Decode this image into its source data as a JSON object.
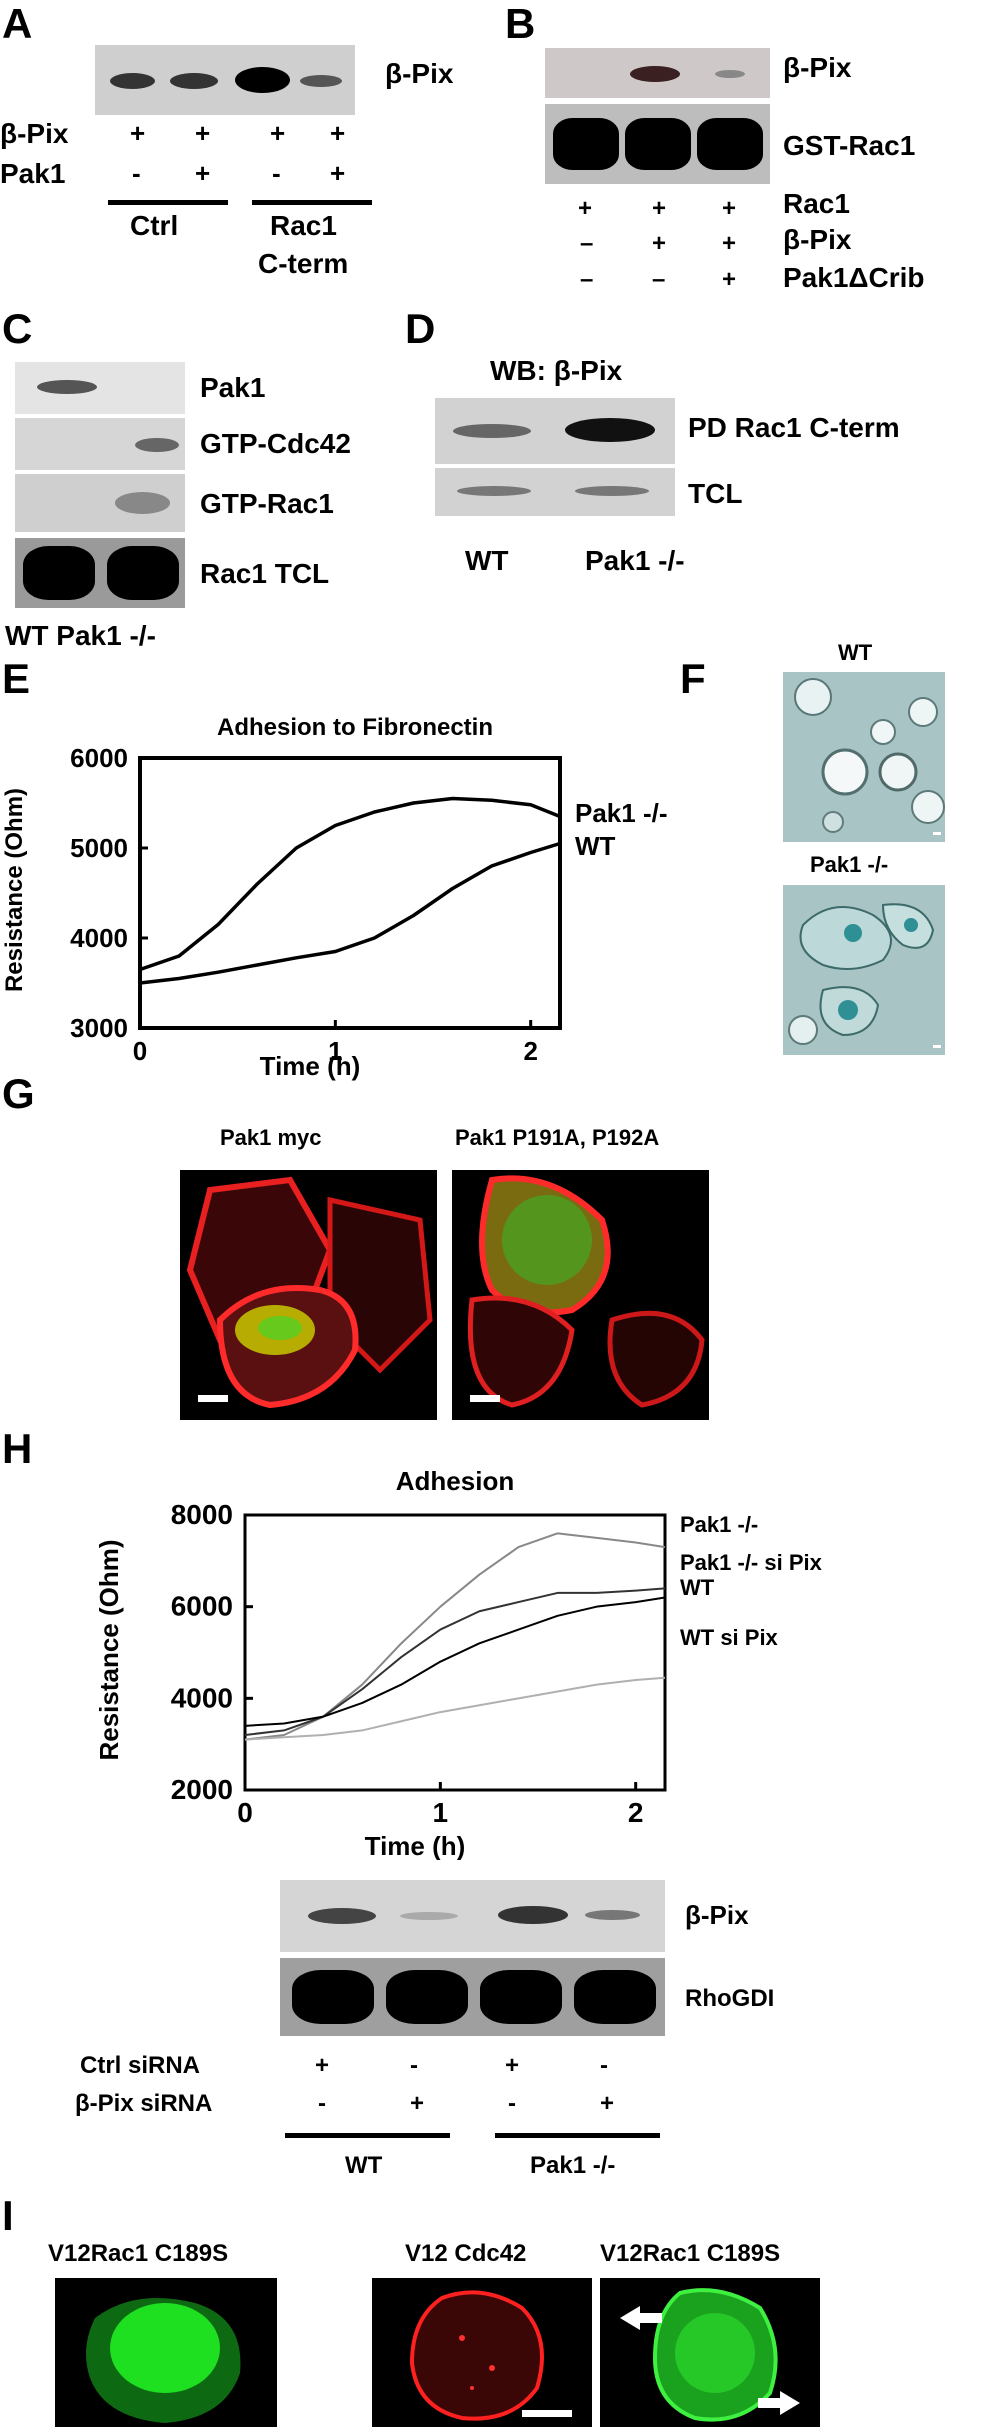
{
  "panels": [
    "A",
    "B",
    "C",
    "D",
    "E",
    "F",
    "G",
    "H",
    "I"
  ],
  "A": {
    "blot_label": "β-Pix",
    "rows": [
      {
        "label": "β-Pix",
        "marks": [
          "+",
          "+",
          "+",
          "+"
        ]
      },
      {
        "label": "Pak1",
        "marks": [
          "-",
          "+",
          "-",
          "+"
        ]
      }
    ],
    "groups": [
      "Ctrl",
      "Rac1",
      "C-term"
    ]
  },
  "B": {
    "blot_labels": [
      "β-Pix",
      "GST-Rac1"
    ],
    "rows": [
      {
        "label": "Rac1",
        "marks": [
          "+",
          "+",
          "+"
        ]
      },
      {
        "label": "β-Pix",
        "marks": [
          "–",
          "+",
          "+"
        ]
      },
      {
        "label": "Pak1ΔCrib",
        "marks": [
          "–",
          "–",
          "+"
        ]
      }
    ]
  },
  "C": {
    "blot_labels": [
      "Pak1",
      "GTP-Cdc42",
      "GTP-Rac1",
      "Rac1 TCL"
    ],
    "lanes": "WT Pak1 -/-"
  },
  "D": {
    "header": "WB: β-Pix",
    "blot_labels": [
      "PD Rac1 C-term",
      "TCL"
    ],
    "lanes": [
      "WT",
      "Pak1 -/-"
    ]
  },
  "E": {
    "title": "Adhesion to Fibronectin",
    "ylabel": "Resistance (Ohm)",
    "xlabel": "Time (h)",
    "yticks": [
      "6000",
      "5000",
      "4000",
      "3000"
    ],
    "xticks": [
      "0",
      "1",
      "2"
    ],
    "series_labels": [
      "Pak1 -/-",
      "WT"
    ]
  },
  "F": {
    "labels": [
      "WT",
      "Pak1 -/-"
    ]
  },
  "G": {
    "labels": [
      "Pak1 myc",
      "Pak1 P191A, P192A"
    ]
  },
  "H": {
    "title": "Adhesion",
    "ylabel": "Resistance (Ohm)",
    "xlabel": "Time (h)",
    "yticks": [
      "8000",
      "6000",
      "4000",
      "2000"
    ],
    "xticks": [
      "0",
      "1",
      "2"
    ],
    "series_labels": [
      "Pak1 -/-",
      "Pak1 -/- si Pix",
      "WT",
      "WT si Pix"
    ],
    "blot_labels": [
      "β-Pix",
      "RhoGDI"
    ],
    "rows": [
      {
        "label": "Ctrl siRNA",
        "marks": [
          "+",
          "-",
          "+",
          "-"
        ]
      },
      {
        "label": "β-Pix siRNA",
        "marks": [
          "-",
          "+",
          "-",
          "+"
        ]
      }
    ],
    "groups": [
      "WT",
      "Pak1 -/-"
    ]
  },
  "I": {
    "labels": [
      "V12Rac1 C189S",
      "V12 Cdc42",
      "V12Rac1 C189S"
    ]
  },
  "chart_data": [
    {
      "type": "line",
      "title": "Adhesion to Fibronectin",
      "xlabel": "Time (h)",
      "ylabel": "Resistance (Ohm)",
      "xlim": [
        0,
        2.15
      ],
      "ylim": [
        3000,
        6000
      ],
      "series": [
        {
          "name": "Pak1 -/-",
          "x": [
            0,
            0.2,
            0.4,
            0.6,
            0.8,
            1.0,
            1.2,
            1.4,
            1.6,
            1.8,
            2.0,
            2.15
          ],
          "y": [
            3650,
            3800,
            4150,
            4600,
            5000,
            5250,
            5400,
            5500,
            5550,
            5530,
            5480,
            5350
          ]
        },
        {
          "name": "WT",
          "x": [
            0,
            0.2,
            0.4,
            0.6,
            0.8,
            1.0,
            1.2,
            1.4,
            1.6,
            1.8,
            2.0,
            2.15
          ],
          "y": [
            3500,
            3550,
            3620,
            3700,
            3780,
            3850,
            4000,
            4250,
            4550,
            4800,
            4950,
            5050
          ]
        }
      ]
    },
    {
      "type": "line",
      "title": "Adhesion",
      "xlabel": "Time (h)",
      "ylabel": "Resistance (Ohm)",
      "xlim": [
        0,
        2.15
      ],
      "ylim": [
        2000,
        8000
      ],
      "series": [
        {
          "name": "Pak1 -/-",
          "color": "#888888",
          "x": [
            0,
            0.2,
            0.4,
            0.6,
            0.8,
            1.0,
            1.2,
            1.4,
            1.6,
            1.8,
            2.0,
            2.15
          ],
          "y": [
            3100,
            3200,
            3600,
            4300,
            5200,
            6000,
            6700,
            7300,
            7600,
            7500,
            7400,
            7300
          ]
        },
        {
          "name": "Pak1 -/- si Pix",
          "color": "#333333",
          "x": [
            0,
            0.2,
            0.4,
            0.6,
            0.8,
            1.0,
            1.2,
            1.4,
            1.6,
            1.8,
            2.0,
            2.15
          ],
          "y": [
            3200,
            3300,
            3600,
            4200,
            4900,
            5500,
            5900,
            6100,
            6300,
            6300,
            6350,
            6400
          ]
        },
        {
          "name": "WT",
          "color": "#000000",
          "x": [
            0,
            0.2,
            0.4,
            0.6,
            0.8,
            1.0,
            1.2,
            1.4,
            1.6,
            1.8,
            2.0,
            2.15
          ],
          "y": [
            3400,
            3450,
            3600,
            3900,
            4300,
            4800,
            5200,
            5500,
            5800,
            6000,
            6100,
            6200
          ]
        },
        {
          "name": "WT si Pix",
          "color": "#b0b0b0",
          "x": [
            0,
            0.2,
            0.4,
            0.6,
            0.8,
            1.0,
            1.2,
            1.4,
            1.6,
            1.8,
            2.0,
            2.15
          ],
          "y": [
            3100,
            3150,
            3200,
            3300,
            3500,
            3700,
            3850,
            4000,
            4150,
            4300,
            4400,
            4450
          ]
        }
      ]
    }
  ]
}
